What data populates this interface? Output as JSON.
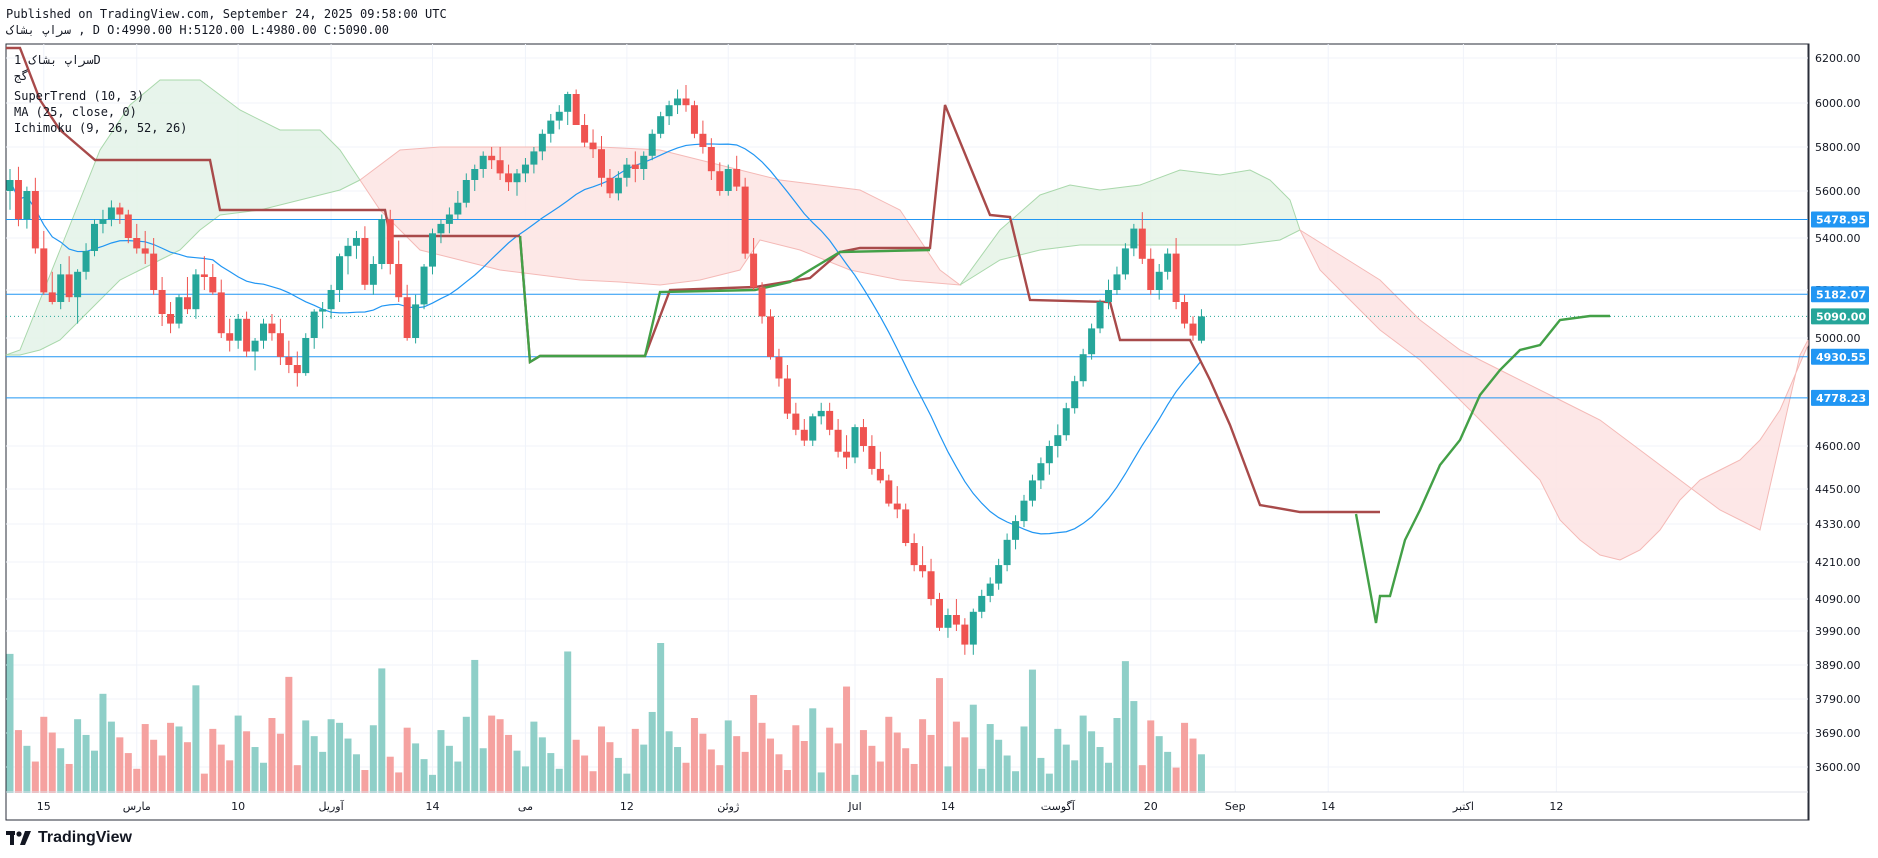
{
  "header": {
    "published_line": "Published on TradingView.com, September 24, 2025 09:58:00 UTC",
    "symbol_line": "سراپ  بشاک  , D O:4990.00 H:5120.00 L:4980.00 C:5090.00"
  },
  "legend": {
    "symbol": "سراپ  بشاک  1D",
    "subtitle": "گج",
    "indicators": [
      "SuperTrend (10, 3)",
      "MA (25, close, 0)",
      "Ichimoku (9, 26, 52, 26)"
    ]
  },
  "footer": {
    "brand": "TradingView"
  },
  "colors": {
    "up": "#26a69a",
    "down": "#ef5350",
    "vol_up": "#8fcfc8",
    "vol_down": "#f5a2a0",
    "supertrend_up": "#43a047",
    "supertrend_down": "#a84a4a",
    "ma": "#2196f3",
    "hline": "#2196f3",
    "cloud_bull": "#e8f5e9",
    "cloud_bear": "#fde6e6",
    "grid": "#f0f3fa",
    "axis_text": "#131722"
  },
  "chart_data": {
    "type": "candlestick",
    "price_axis": {
      "min": 3520,
      "max": 6250,
      "ticks": [
        3600,
        3690,
        3790,
        3890,
        3990,
        4090,
        4210,
        4330,
        4450,
        4600,
        5000,
        5200,
        5400,
        5600,
        5800,
        6000,
        6200
      ]
    },
    "tick_labels": [
      "3600.00",
      "3690.00",
      "3790.00",
      "3890.00",
      "3990.00",
      "4090.00",
      "4210.00",
      "4330.00",
      "4450.00",
      "4600.00",
      "5000.00",
      "5200.00",
      "5400.00",
      "5600.00",
      "5800.00",
      "6000.00",
      "6200.00"
    ],
    "time_axis_labels": [
      "15",
      "مارس",
      "10",
      "آوریل",
      "14",
      "می",
      "12",
      "ژوئن",
      "Jul",
      "14",
      "آگوست",
      "20",
      "Sep",
      "14",
      "اکتبر",
      "12"
    ],
    "time_axis_index": [
      4,
      15,
      27,
      38,
      50,
      61,
      73,
      85,
      100,
      111,
      124,
      135,
      145,
      156,
      172,
      183
    ],
    "price_lines": [
      {
        "value": 5478.95,
        "label": "5478.95"
      },
      {
        "value": 5182.07,
        "label": "5182.07"
      },
      {
        "value": 4930.55,
        "label": "4930.55"
      },
      {
        "value": 4778.23,
        "label": "4778.23"
      }
    ],
    "last_price": {
      "value": 5090.0,
      "label": "5090.00"
    },
    "candles": [
      [
        5600,
        5700,
        5520,
        5650
      ],
      [
        5650,
        5710,
        5450,
        5480
      ],
      [
        5480,
        5620,
        5440,
        5600
      ],
      [
        5600,
        5660,
        5340,
        5360
      ],
      [
        5360,
        5430,
        5180,
        5190
      ],
      [
        5190,
        5270,
        5140,
        5150
      ],
      [
        5150,
        5300,
        5120,
        5260
      ],
      [
        5260,
        5330,
        5150,
        5170
      ],
      [
        5170,
        5280,
        5060,
        5270
      ],
      [
        5270,
        5380,
        5240,
        5350
      ],
      [
        5350,
        5480,
        5330,
        5460
      ],
      [
        5460,
        5520,
        5420,
        5480
      ],
      [
        5480,
        5560,
        5450,
        5530
      ],
      [
        5530,
        5550,
        5460,
        5500
      ],
      [
        5500,
        5520,
        5380,
        5400
      ],
      [
        5400,
        5460,
        5340,
        5360
      ],
      [
        5360,
        5430,
        5300,
        5340
      ],
      [
        5340,
        5400,
        5180,
        5200
      ],
      [
        5200,
        5250,
        5050,
        5100
      ],
      [
        5100,
        5150,
        5020,
        5060
      ],
      [
        5060,
        5180,
        5040,
        5170
      ],
      [
        5170,
        5250,
        5100,
        5120
      ],
      [
        5120,
        5280,
        5080,
        5260
      ],
      [
        5260,
        5330,
        5200,
        5250
      ],
      [
        5250,
        5300,
        5180,
        5190
      ],
      [
        5190,
        5240,
        5000,
        5020
      ],
      [
        5020,
        5080,
        4950,
        4990
      ],
      [
        4990,
        5100,
        4960,
        5080
      ],
      [
        5080,
        5110,
        4930,
        4950
      ],
      [
        4950,
        5000,
        4880,
        4990
      ],
      [
        4990,
        5080,
        4960,
        5060
      ],
      [
        5060,
        5100,
        4990,
        5020
      ],
      [
        5020,
        5080,
        4900,
        4930
      ],
      [
        4930,
        4990,
        4870,
        4900
      ],
      [
        4900,
        4950,
        4820,
        4870
      ],
      [
        4870,
        5020,
        4860,
        5000
      ],
      [
        5000,
        5120,
        4960,
        5110
      ],
      [
        5110,
        5150,
        5040,
        5120
      ],
      [
        5120,
        5220,
        5080,
        5200
      ],
      [
        5200,
        5340,
        5150,
        5330
      ],
      [
        5330,
        5400,
        5260,
        5370
      ],
      [
        5370,
        5430,
        5320,
        5400
      ],
      [
        5400,
        5450,
        5200,
        5220
      ],
      [
        5220,
        5330,
        5180,
        5300
      ],
      [
        5300,
        5500,
        5280,
        5480
      ],
      [
        5480,
        5520,
        5260,
        5300
      ],
      [
        5300,
        5390,
        5150,
        5170
      ],
      [
        5170,
        5220,
        4990,
        5000
      ],
      [
        5000,
        5180,
        4980,
        5140
      ],
      [
        5140,
        5300,
        5120,
        5290
      ],
      [
        5290,
        5440,
        5260,
        5420
      ],
      [
        5420,
        5480,
        5380,
        5460
      ],
      [
        5460,
        5530,
        5420,
        5500
      ],
      [
        5500,
        5600,
        5480,
        5550
      ],
      [
        5550,
        5680,
        5530,
        5650
      ],
      [
        5650,
        5720,
        5600,
        5700
      ],
      [
        5700,
        5780,
        5660,
        5760
      ],
      [
        5760,
        5800,
        5700,
        5740
      ],
      [
        5740,
        5800,
        5650,
        5680
      ],
      [
        5680,
        5720,
        5600,
        5640
      ],
      [
        5640,
        5700,
        5580,
        5680
      ],
      [
        5680,
        5750,
        5640,
        5720
      ],
      [
        5720,
        5800,
        5680,
        5780
      ],
      [
        5780,
        5880,
        5740,
        5860
      ],
      [
        5860,
        5950,
        5820,
        5920
      ],
      [
        5920,
        5990,
        5880,
        5960
      ],
      [
        5960,
        6050,
        5900,
        6040
      ],
      [
        6040,
        6060,
        5900,
        5900
      ],
      [
        5900,
        5950,
        5800,
        5820
      ],
      [
        5820,
        5880,
        5750,
        5790
      ],
      [
        5790,
        5850,
        5620,
        5660
      ],
      [
        5660,
        5700,
        5570,
        5590
      ],
      [
        5590,
        5690,
        5560,
        5660
      ],
      [
        5660,
        5750,
        5620,
        5720
      ],
      [
        5720,
        5780,
        5640,
        5700
      ],
      [
        5700,
        5780,
        5650,
        5760
      ],
      [
        5760,
        5880,
        5740,
        5860
      ],
      [
        5860,
        5960,
        5840,
        5940
      ],
      [
        5940,
        6010,
        5900,
        5990
      ],
      [
        5990,
        6060,
        5950,
        6020
      ],
      [
        6020,
        6080,
        5960,
        5990
      ],
      [
        5990,
        6010,
        5840,
        5860
      ],
      [
        5860,
        5920,
        5770,
        5800
      ],
      [
        5800,
        5840,
        5650,
        5690
      ],
      [
        5690,
        5730,
        5580,
        5600
      ],
      [
        5600,
        5720,
        5580,
        5700
      ],
      [
        5700,
        5760,
        5600,
        5620
      ],
      [
        5620,
        5660,
        5320,
        5340
      ],
      [
        5340,
        5400,
        5200,
        5210
      ],
      [
        5210,
        5230,
        5060,
        5090
      ],
      [
        5090,
        5120,
        4920,
        4930
      ],
      [
        4930,
        4960,
        4820,
        4850
      ],
      [
        4850,
        4900,
        4700,
        4720
      ],
      [
        4720,
        4760,
        4640,
        4660
      ],
      [
        4660,
        4700,
        4600,
        4620
      ],
      [
        4620,
        4720,
        4600,
        4710
      ],
      [
        4710,
        4760,
        4680,
        4730
      ],
      [
        4730,
        4760,
        4640,
        4660
      ],
      [
        4660,
        4700,
        4560,
        4580
      ],
      [
        4580,
        4640,
        4520,
        4560
      ],
      [
        4560,
        4680,
        4540,
        4670
      ],
      [
        4670,
        4700,
        4580,
        4600
      ],
      [
        4600,
        4640,
        4500,
        4520
      ],
      [
        4520,
        4580,
        4470,
        4480
      ],
      [
        4480,
        4500,
        4390,
        4400
      ],
      [
        4400,
        4460,
        4350,
        4380
      ],
      [
        4380,
        4400,
        4260,
        4270
      ],
      [
        4270,
        4300,
        4180,
        4200
      ],
      [
        4200,
        4260,
        4160,
        4180
      ],
      [
        4180,
        4220,
        4070,
        4090
      ],
      [
        4090,
        4110,
        3990,
        4000
      ],
      [
        4000,
        4060,
        3970,
        4040
      ],
      [
        4040,
        4090,
        3990,
        4010
      ],
      [
        4010,
        4030,
        3920,
        3950
      ],
      [
        3950,
        4060,
        3920,
        4050
      ],
      [
        4050,
        4120,
        4030,
        4100
      ],
      [
        4100,
        4160,
        4080,
        4140
      ],
      [
        4140,
        4220,
        4120,
        4200
      ],
      [
        4200,
        4300,
        4180,
        4280
      ],
      [
        4280,
        4360,
        4250,
        4340
      ],
      [
        4340,
        4430,
        4320,
        4410
      ],
      [
        4410,
        4500,
        4390,
        4480
      ],
      [
        4480,
        4560,
        4450,
        4540
      ],
      [
        4540,
        4620,
        4500,
        4600
      ],
      [
        4600,
        4680,
        4560,
        4640
      ],
      [
        4640,
        4760,
        4620,
        4740
      ],
      [
        4740,
        4860,
        4720,
        4840
      ],
      [
        4840,
        4960,
        4820,
        4940
      ],
      [
        4940,
        5060,
        4920,
        5040
      ],
      [
        5040,
        5160,
        5020,
        5150
      ],
      [
        5150,
        5240,
        5120,
        5200
      ],
      [
        5200,
        5290,
        5180,
        5260
      ],
      [
        5260,
        5380,
        5240,
        5360
      ],
      [
        5360,
        5460,
        5330,
        5440
      ],
      [
        5440,
        5510,
        5300,
        5320
      ],
      [
        5320,
        5360,
        5180,
        5200
      ],
      [
        5200,
        5300,
        5160,
        5270
      ],
      [
        5270,
        5360,
        5240,
        5340
      ],
      [
        5340,
        5400,
        5120,
        5150
      ],
      [
        5150,
        5180,
        5040,
        5060
      ],
      [
        5060,
        5090,
        4990,
        5010
      ],
      [
        4990,
        5120,
        4980,
        5090
      ]
    ],
    "volume_scale_max": 100
  }
}
